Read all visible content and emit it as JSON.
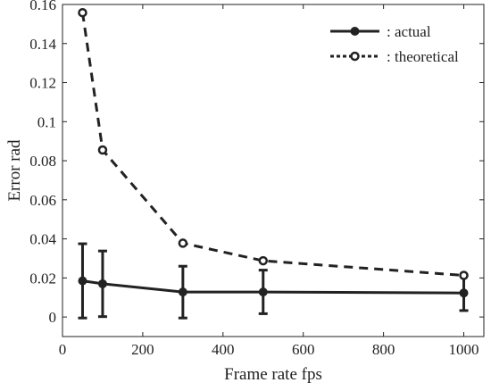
{
  "chart_data": {
    "type": "line",
    "title": "",
    "xlabel": "Frame rate fps",
    "ylabel": "Error rad",
    "xlim": [
      0,
      1050
    ],
    "ylim": [
      -0.01,
      0.16
    ],
    "xticks": [
      0,
      200,
      400,
      600,
      800,
      1000
    ],
    "yticks": [
      0,
      0.02,
      0.04,
      0.06,
      0.08,
      0.1,
      0.12,
      0.14,
      0.16
    ],
    "xtick_labels": [
      "0",
      "200",
      "400",
      "600",
      "800",
      "1000"
    ],
    "ytick_labels": [
      "0",
      "0.02",
      "0.04",
      "0.06",
      "0.08",
      "0.1",
      "0.12",
      "0.14",
      "0.16"
    ],
    "grid": false,
    "legend_position": "top-right",
    "series": [
      {
        "name": ": actual",
        "style": "solid-filled-markers",
        "color": "#222222",
        "x": [
          50,
          100,
          300,
          500,
          1000
        ],
        "y": [
          0.0185,
          0.017,
          0.0128,
          0.0128,
          0.0123
        ],
        "err_low": [
          -0.0005,
          0.0002,
          -0.0005,
          0.0017,
          0.0033
        ],
        "err_high": [
          0.0375,
          0.0338,
          0.026,
          0.024,
          0.0212
        ]
      },
      {
        "name": ": theoretical",
        "style": "dashed-open-markers",
        "color": "#222222",
        "x": [
          50,
          100,
          300,
          500,
          1000
        ],
        "y": [
          0.1558,
          0.0855,
          0.0378,
          0.0288,
          0.0213
        ]
      }
    ]
  }
}
